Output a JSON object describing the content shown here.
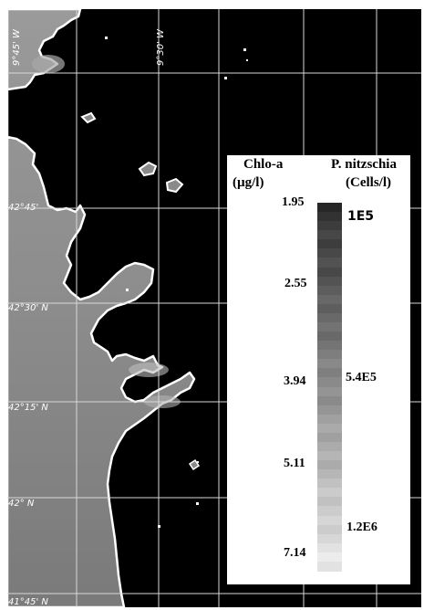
{
  "map": {
    "lat_labels": [
      "42°45'",
      "42°30' N",
      "42°15' N",
      "42° N",
      "41°45' N"
    ],
    "lon_labels": [
      "9°45' W",
      "9°30' W"
    ],
    "colors": {
      "ocean": "#000000",
      "coast": "#ffffff",
      "grid": "#d8d8d8"
    }
  },
  "legend": {
    "chl_title": "Chlo-a",
    "chl_unit": "(µg/l)",
    "pn_title": "P. nitzschia",
    "pn_unit": "(Cells/l)",
    "chl_ticks": [
      "1.95",
      "2.55",
      "3.94",
      "5.11",
      "7.14"
    ],
    "pn_ticks": [
      "1E5",
      "5.4E5",
      "1.2E6"
    ],
    "colorbar": {
      "top_color": "#303030",
      "bottom_color": "#e8e8e8"
    }
  }
}
